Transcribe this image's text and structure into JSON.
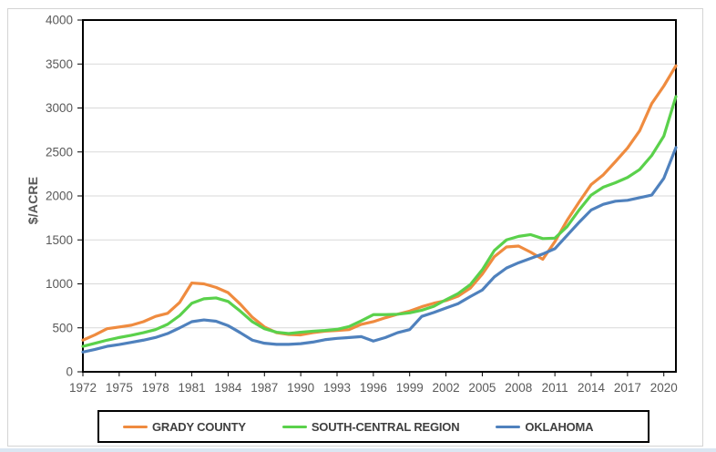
{
  "colors": {
    "grid": "#D9D9D9",
    "axis_text": "#595959",
    "plot_border": "#000000",
    "legend_border": "#000000",
    "legend_text": "#404040",
    "grady_county": "#EF8B3F",
    "south_central": "#5AD14B",
    "oklahoma": "#4F81BD"
  },
  "chart_data": {
    "type": "line",
    "title": "",
    "xlabel": "",
    "ylabel": "$/ACRE",
    "ylim": [
      0,
      4000
    ],
    "ytick_step": 500,
    "grid": "horizontal",
    "legend_position": "bottom",
    "x": [
      1972,
      1973,
      1974,
      1975,
      1976,
      1977,
      1978,
      1979,
      1980,
      1981,
      1982,
      1983,
      1984,
      1985,
      1986,
      1987,
      1988,
      1989,
      1990,
      1991,
      1992,
      1993,
      1994,
      1995,
      1996,
      1997,
      1998,
      1999,
      2000,
      2001,
      2002,
      2003,
      2004,
      2005,
      2006,
      2007,
      2008,
      2009,
      2010,
      2011,
      2012,
      2013,
      2014,
      2015,
      2016,
      2017,
      2018,
      2019,
      2020,
      2021
    ],
    "xticks": [
      1972,
      1975,
      1978,
      1981,
      1984,
      1987,
      1990,
      1993,
      1996,
      1999,
      2002,
      2005,
      2008,
      2011,
      2014,
      2017,
      2020
    ],
    "series": [
      {
        "name": "GRADY COUNTY",
        "color": "#EF8B3F",
        "values": [
          360,
          420,
          490,
          510,
          530,
          570,
          630,
          665,
          790,
          1010,
          1000,
          960,
          900,
          770,
          620,
          510,
          445,
          425,
          420,
          445,
          462,
          470,
          480,
          540,
          570,
          615,
          655,
          690,
          740,
          780,
          810,
          860,
          950,
          1110,
          1310,
          1420,
          1430,
          1360,
          1280,
          1480,
          1720,
          1930,
          2130,
          2240,
          2390,
          2545,
          2740,
          3050,
          3250,
          3480
        ]
      },
      {
        "name": "SOUTH-CENTRAL REGION",
        "color": "#5AD14B",
        "values": [
          290,
          325,
          360,
          390,
          415,
          445,
          480,
          540,
          640,
          780,
          830,
          840,
          800,
          690,
          570,
          490,
          450,
          435,
          450,
          462,
          470,
          483,
          515,
          580,
          650,
          650,
          655,
          670,
          700,
          745,
          820,
          890,
          990,
          1160,
          1380,
          1500,
          1540,
          1560,
          1515,
          1520,
          1650,
          1840,
          2010,
          2100,
          2150,
          2210,
          2300,
          2460,
          2680,
          3130
        ]
      },
      {
        "name": "OKLAHOMA",
        "color": "#4F81BD",
        "values": [
          225,
          255,
          290,
          310,
          335,
          360,
          390,
          435,
          500,
          570,
          590,
          575,
          525,
          445,
          360,
          325,
          312,
          312,
          320,
          338,
          365,
          380,
          390,
          400,
          350,
          390,
          445,
          480,
          630,
          675,
          725,
          775,
          855,
          930,
          1080,
          1180,
          1240,
          1290,
          1340,
          1400,
          1550,
          1700,
          1840,
          1905,
          1940,
          1950,
          1980,
          2010,
          2200,
          2550
        ]
      }
    ]
  }
}
